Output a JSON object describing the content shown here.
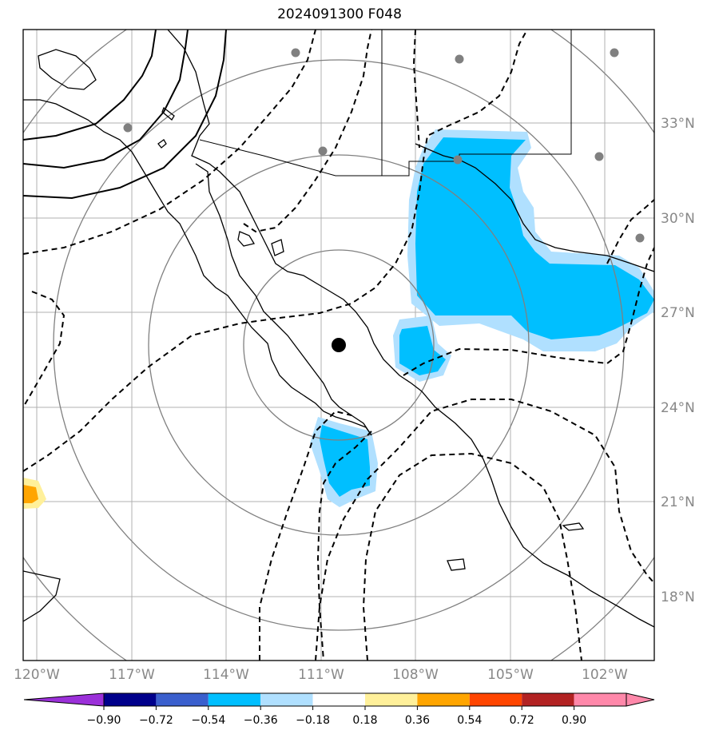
{
  "title": "2024091300 F048",
  "map": {
    "longitude_labels": [
      "120°W",
      "117°W",
      "114°W",
      "111°W",
      "108°W",
      "105°W",
      "102°W"
    ],
    "latitude_labels": [
      "33°N",
      "30°N",
      "27°N",
      "24°N",
      "21°N",
      "18°N"
    ],
    "center_marker": "black-dot",
    "grid": true
  },
  "colorbar": {
    "tick_labels": [
      "−0.90",
      "−0.72",
      "−0.54",
      "−0.36",
      "−0.18",
      "0.18",
      "0.36",
      "0.54",
      "0.72",
      "0.90"
    ],
    "colors": [
      "#9b30d9",
      "#00008b",
      "#3a5fcd",
      "#00bfff",
      "#b0e0ff",
      "#ffffff",
      "#fff09a",
      "#ffa500",
      "#ff4500",
      "#b22222",
      "#ff88aa"
    ]
  }
}
